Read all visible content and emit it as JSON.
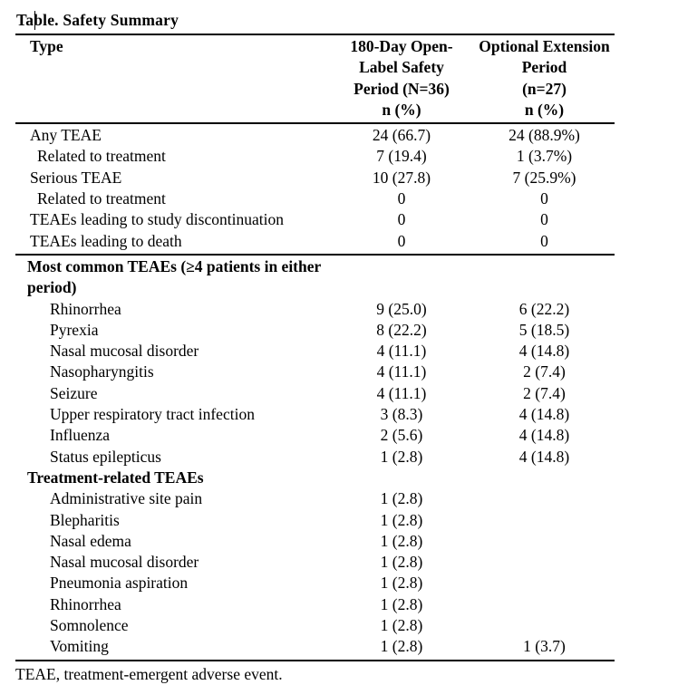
{
  "title": "Table. Safety Summary",
  "colors": {
    "text": "#000000",
    "background": "#ffffff",
    "rule": "#000000"
  },
  "table": {
    "header": {
      "type_label": "Type",
      "col1": "180-Day Open-\nLabel Safety\nPeriod (N=36)\nn (%)",
      "col2": "Optional Extension\nPeriod\n(n=27)\nn (%)"
    },
    "rows": [
      {
        "label": "Any TEAE",
        "c1": "24 (66.7)",
        "c2": "24 (88.9%)",
        "style": "l1",
        "rule_above": false
      },
      {
        "label": "Related to treatment",
        "c1": "7 (19.4)",
        "c2": "1 (3.7%)",
        "style": "l2",
        "rule_above": false
      },
      {
        "label": "Serious TEAE",
        "c1": "10 (27.8)",
        "c2": "7 (25.9%)",
        "style": "l1",
        "rule_above": false
      },
      {
        "label": "Related to treatment",
        "c1": "0",
        "c2": "0",
        "style": "l2",
        "rule_above": false
      },
      {
        "label": "TEAEs leading to study discontinuation",
        "c1": "0",
        "c2": "0",
        "style": "l1",
        "rule_above": false
      },
      {
        "label": "TEAEs leading to death",
        "c1": "0",
        "c2": "0",
        "style": "l1",
        "rule_above": false
      },
      {
        "label": "Most common TEAEs (≥4 patients in either\nperiod)",
        "c1": "",
        "c2": "",
        "style": "sec",
        "rule_above": true
      },
      {
        "label": "Rhinorrhea",
        "c1": "9 (25.0)",
        "c2": "6 (22.2)",
        "style": "l3",
        "rule_above": false
      },
      {
        "label": "Pyrexia",
        "c1": "8 (22.2)",
        "c2": "5 (18.5)",
        "style": "l3",
        "rule_above": false
      },
      {
        "label": "Nasal mucosal disorder",
        "c1": "4 (11.1)",
        "c2": "4 (14.8)",
        "style": "l3",
        "rule_above": false
      },
      {
        "label": "Nasopharyngitis",
        "c1": "4 (11.1)",
        "c2": "2 (7.4)",
        "style": "l3",
        "rule_above": false
      },
      {
        "label": "Seizure",
        "c1": "4 (11.1)",
        "c2": "2 (7.4)",
        "style": "l3",
        "rule_above": false
      },
      {
        "label": "Upper respiratory tract infection",
        "c1": "3 (8.3)",
        "c2": "4 (14.8)",
        "style": "l3",
        "rule_above": false
      },
      {
        "label": "Influenza",
        "c1": "2 (5.6)",
        "c2": "4 (14.8)",
        "style": "l3",
        "rule_above": false
      },
      {
        "label": "Status epilepticus",
        "c1": "1 (2.8)",
        "c2": "4 (14.8)",
        "style": "l3",
        "rule_above": false
      },
      {
        "label": "Treatment-related TEAEs",
        "c1": "",
        "c2": "",
        "style": "sec",
        "rule_above": false
      },
      {
        "label": "Administrative site pain",
        "c1": "1 (2.8)",
        "c2": "",
        "style": "l3",
        "rule_above": false
      },
      {
        "label": "Blepharitis",
        "c1": "1 (2.8)",
        "c2": "",
        "style": "l3",
        "rule_above": false
      },
      {
        "label": "Nasal edema",
        "c1": "1 (2.8)",
        "c2": "",
        "style": "l3",
        "rule_above": false
      },
      {
        "label": "Nasal mucosal disorder",
        "c1": "1 (2.8)",
        "c2": "",
        "style": "l3",
        "rule_above": false
      },
      {
        "label": "Pneumonia aspiration",
        "c1": "1 (2.8)",
        "c2": "",
        "style": "l3",
        "rule_above": false
      },
      {
        "label": "Rhinorrhea",
        "c1": "1 (2.8)",
        "c2": "",
        "style": "l3",
        "rule_above": false
      },
      {
        "label": "Somnolence",
        "c1": "1 (2.8)",
        "c2": "",
        "style": "l3",
        "rule_above": false
      },
      {
        "label": "Vomiting",
        "c1": "1 (2.8)",
        "c2": "1 (3.7)",
        "style": "l3",
        "rule_above": false
      }
    ],
    "footnote": "TEAE, treatment-emergent adverse event."
  }
}
